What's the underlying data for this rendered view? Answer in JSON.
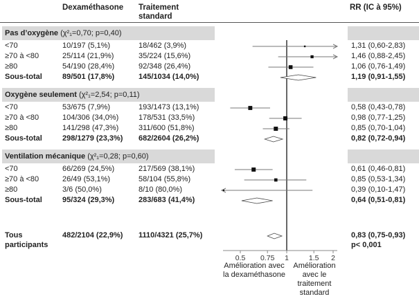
{
  "headers": {
    "dexa": "Dexaméthasone",
    "std_line1": "Traitement",
    "std_line2": "standard",
    "rr": "RR (IC à 95%)"
  },
  "groups": [
    {
      "title_bold": "Pas d’oxygène",
      "title_stat": "(χ²₁=0,70; p=0,40)",
      "rows": [
        {
          "label": "<70",
          "dexa": "10/197 (5,1%)",
          "std": "18/462 (3,9%)",
          "rr_text": "1,31 (0,60-2,83)",
          "rr": 1.31,
          "lo": 0.6,
          "hi": 2.83,
          "subtotal": false
        },
        {
          "label": "≥70 à <80",
          "dexa": "25/114 (21,9%)",
          "std": "35/224 (15,6%)",
          "rr_text": "1,46 (0,88-2,45)",
          "rr": 1.46,
          "lo": 0.88,
          "hi": 2.45,
          "subtotal": false
        },
        {
          "label": "≥80",
          "dexa": "54/190 (28,4%)",
          "std": "92/348 (26,4%)",
          "rr_text": "1,06 (0,76-1,49)",
          "rr": 1.06,
          "lo": 0.76,
          "hi": 1.49,
          "subtotal": false
        },
        {
          "label": "Sous-total",
          "dexa": "89/501 (17,8%)",
          "std": "145/1034 (14,0%)",
          "rr_text": "1,19 (0,91-1,55)",
          "rr": 1.19,
          "lo": 0.91,
          "hi": 1.55,
          "subtotal": true
        }
      ]
    },
    {
      "title_bold": "Oxygène seulement",
      "title_stat": "(χ²₁=2,54; p=0,11)",
      "rows": [
        {
          "label": "<70",
          "dexa": "53/675 (7,9%)",
          "std": "193/1473 (13,1%)",
          "rr_text": "0,58 (0,43-0,78)",
          "rr": 0.58,
          "lo": 0.43,
          "hi": 0.78,
          "subtotal": false
        },
        {
          "label": "≥70 à <80",
          "dexa": "104/306 (34,0%)",
          "std": "178/531 (33,5%)",
          "rr_text": "0,98 (0,77-1,25)",
          "rr": 0.98,
          "lo": 0.77,
          "hi": 1.25,
          "subtotal": false
        },
        {
          "label": "≥80",
          "dexa": "141/298 (47,3%)",
          "std": "311/600 (51,8%)",
          "rr_text": "0,85 (0,70-1,04)",
          "rr": 0.85,
          "lo": 0.7,
          "hi": 1.04,
          "subtotal": false
        },
        {
          "label": "Sous-total",
          "dexa": "298/1279 (23,3%)",
          "std": "682/2604 (26,2%)",
          "rr_text": "0,82 (0,72-0,94)",
          "rr": 0.82,
          "lo": 0.72,
          "hi": 0.94,
          "subtotal": true
        }
      ]
    },
    {
      "title_bold": "Ventilation mécanique",
      "title_stat": "(χ²₁=0,28; p=0,60)",
      "rows": [
        {
          "label": "<70",
          "dexa": "66/269 (24,5%)",
          "std": "217/569 (38,1%)",
          "rr_text": "0,61 (0,46-0,81)",
          "rr": 0.61,
          "lo": 0.46,
          "hi": 0.81,
          "subtotal": false
        },
        {
          "label": "≥70 à <80",
          "dexa": "26/49 (53,1%)",
          "std": "58/104 (55,8%)",
          "rr_text": "0,85 (0,53-1,34)",
          "rr": 0.85,
          "lo": 0.53,
          "hi": 1.34,
          "subtotal": false
        },
        {
          "label": "≥80",
          "dexa": "3/6 (50,0%)",
          "std": "8/10 (80,0%)",
          "rr_text": "0,39 (0,10-1,47)",
          "rr": 0.39,
          "lo": 0.1,
          "hi": 1.47,
          "subtotal": false
        },
        {
          "label": "Sous-total",
          "dexa": "95/324 (29,3%)",
          "std": "283/683 (41,4%)",
          "rr_text": "0,64 (0,51-0,81)",
          "rr": 0.64,
          "lo": 0.51,
          "hi": 0.81,
          "subtotal": true
        }
      ]
    }
  ],
  "overall": {
    "label_line1": "Tous",
    "label_line2": "participants",
    "dexa": "482/2104 (22,9%)",
    "std": "1110/4321 (25,7%)",
    "rr_text": "0,83 (0,75-0,93)",
    "p_text": "p< 0,001",
    "rr": 0.83,
    "lo": 0.75,
    "hi": 0.93
  },
  "axis": {
    "left_label": "Amélioration avec la dexaméthasone",
    "right_label": "Amélioration avec le traitement standard"
  },
  "chart_data": {
    "type": "forest",
    "scale": "log",
    "xlim": [
      0.36,
      2.1
    ],
    "reference_line": 1,
    "xticks": [
      0.5,
      0.75,
      1,
      1.5,
      2
    ],
    "xtick_labels": [
      "0.5",
      "0.75",
      "1",
      "1.5",
      "2"
    ],
    "xlabel_left": "Amélioration avec la dexaméthasone",
    "xlabel_right": "Amélioration avec le traitement standard",
    "columns": [
      "Dexaméthasone",
      "Traitement standard",
      "RR (IC à 95%)"
    ],
    "series": [
      {
        "name": "Pas d’oxygène <70",
        "rr": 1.31,
        "lo": 0.6,
        "hi": 2.83
      },
      {
        "name": "Pas d’oxygène ≥70 à <80",
        "rr": 1.46,
        "lo": 0.88,
        "hi": 2.45
      },
      {
        "name": "Pas d’oxygène ≥80",
        "rr": 1.06,
        "lo": 0.76,
        "hi": 1.49
      },
      {
        "name": "Pas d’oxygène Sous-total",
        "rr": 1.19,
        "lo": 0.91,
        "hi": 1.55
      },
      {
        "name": "Oxygène seulement <70",
        "rr": 0.58,
        "lo": 0.43,
        "hi": 0.78
      },
      {
        "name": "Oxygène seulement ≥70 à <80",
        "rr": 0.98,
        "lo": 0.77,
        "hi": 1.25
      },
      {
        "name": "Oxygène seulement ≥80",
        "rr": 0.85,
        "lo": 0.7,
        "hi": 1.04
      },
      {
        "name": "Oxygène seulement Sous-total",
        "rr": 0.82,
        "lo": 0.72,
        "hi": 0.94
      },
      {
        "name": "Ventilation mécanique <70",
        "rr": 0.61,
        "lo": 0.46,
        "hi": 0.81
      },
      {
        "name": "Ventilation mécanique ≥70 à <80",
        "rr": 0.85,
        "lo": 0.53,
        "hi": 1.34
      },
      {
        "name": "Ventilation mécanique ≥80",
        "rr": 0.39,
        "lo": 0.1,
        "hi": 1.47
      },
      {
        "name": "Ventilation mécanique Sous-total",
        "rr": 0.64,
        "lo": 0.51,
        "hi": 0.81
      },
      {
        "name": "Tous participants",
        "rr": 0.83,
        "lo": 0.75,
        "hi": 0.93
      }
    ]
  }
}
